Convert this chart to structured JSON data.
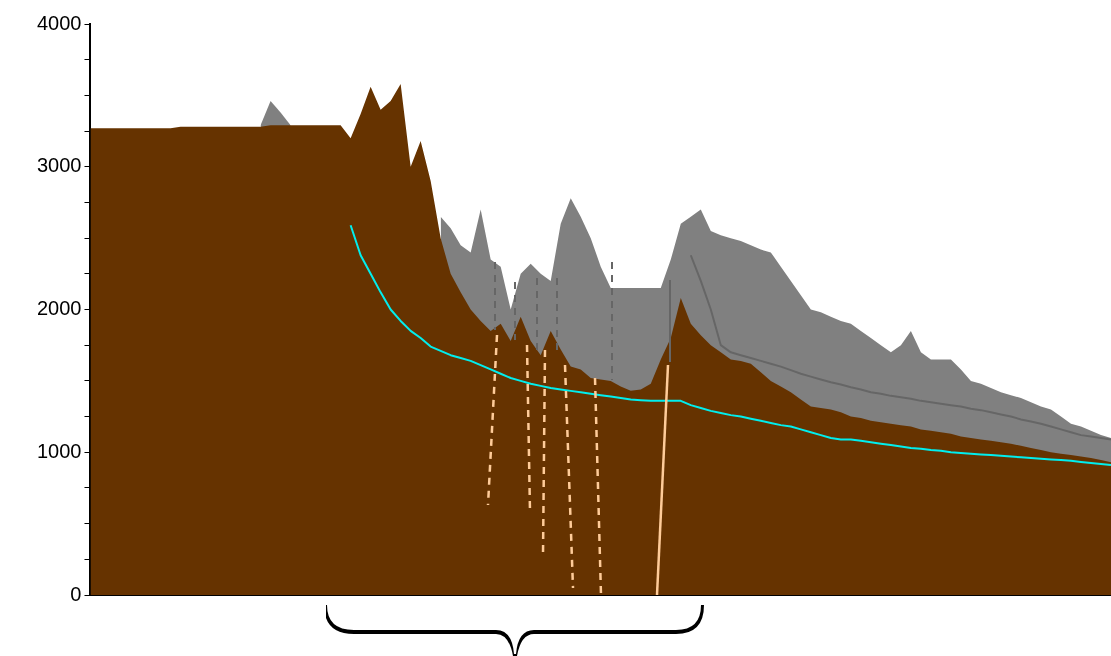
{
  "chart_data": {
    "type": "area",
    "ylim": [
      0,
      4000
    ],
    "categories": [
      null,
      null,
      null,
      null,
      null,
      null,
      null,
      null,
      null,
      null,
      null,
      null,
      null,
      null,
      null,
      null,
      null,
      null,
      null,
      null,
      null,
      null,
      null,
      null,
      null,
      null,
      null,
      null,
      null,
      null,
      null,
      null,
      null,
      null,
      null,
      null,
      null,
      null,
      null,
      null,
      null,
      null,
      null,
      null,
      null,
      null,
      null,
      null,
      null,
      null,
      null,
      null,
      null,
      null,
      null,
      null,
      null,
      null,
      null,
      null,
      null,
      null,
      null,
      null,
      null,
      null,
      null,
      null,
      null,
      null,
      null,
      null,
      null,
      null,
      null,
      null,
      null,
      null,
      null,
      null,
      null,
      null,
      null,
      null,
      null,
      null,
      null,
      null,
      null,
      null,
      null,
      null,
      null,
      null,
      null,
      null,
      null,
      null,
      null,
      null,
      null,
      null,
      null
    ],
    "yticks": [
      0,
      {
        "value": 250,
        "label": null
      },
      {
        "value": 500,
        "label": null
      },
      {
        "value": 750,
        "label": null
      },
      1000,
      {
        "value": 1250,
        "label": null
      },
      {
        "value": 1500,
        "label": null
      },
      {
        "value": 1750,
        "label": null
      },
      2000,
      {
        "value": 2250,
        "label": null
      },
      {
        "value": 2500,
        "label": null
      },
      {
        "value": 2750,
        "label": null
      },
      3000,
      {
        "value": 3250,
        "label": null
      },
      {
        "value": 3500,
        "label": null
      },
      {
        "value": 3750,
        "label": null
      },
      4000
    ],
    "tick_labels": "y",
    "grid": false,
    "legend": false,
    "marker": "none",
    "series": [
      {
        "color": "#808080",
        "values": [
          null,
          null,
          null,
          null,
          null,
          null,
          null,
          null,
          null,
          null,
          null,
          null,
          null,
          null,
          null,
          null,
          null,
          3290,
          3460,
          3380,
          3290,
          null,
          null,
          null,
          null,
          null,
          null,
          null,
          null,
          null,
          null,
          null,
          null,
          null,
          null,
          2650,
          2570,
          2450,
          2400,
          2700,
          2350,
          2300,
          2000,
          2250,
          2320,
          2250,
          2200,
          2600,
          2780,
          2650,
          2500,
          2300,
          2150,
          2150,
          2150,
          2150,
          2150,
          2150,
          2350,
          2600,
          2650,
          2700,
          2550,
          2520,
          2500,
          2480,
          2450,
          2420,
          2400,
          2300,
          2200,
          2100,
          2000,
          1980,
          1950,
          1920,
          1900,
          1850,
          1800,
          1750,
          1700,
          1750,
          1850,
          1700,
          1650,
          1650,
          1650,
          1580,
          1500,
          1480,
          1450,
          1420,
          1400,
          1380,
          1350,
          1320,
          1300,
          1250,
          1200,
          1180,
          1150,
          1120,
          1100
        ]
      },
      {
        "color": "#663300",
        "values": [
          3270,
          3270,
          3270,
          3270,
          3270,
          3270,
          3270,
          3270,
          3270,
          3280,
          3280,
          3280,
          3280,
          3280,
          3280,
          3280,
          3280,
          3280,
          3290,
          3290,
          3290,
          3290,
          3290,
          3290,
          3290,
          3290,
          3200,
          3370,
          3560,
          3400,
          3460,
          3580,
          3000,
          3180,
          2900,
          2500,
          2250,
          2120,
          2000,
          1920,
          1850,
          1900,
          1780,
          1950,
          1780,
          1680,
          1850,
          1720,
          1600,
          1580,
          1520,
          1510,
          1500,
          1460,
          1430,
          1440,
          1480,
          1650,
          1800,
          2080,
          1900,
          1820,
          1750,
          1700,
          1650,
          1640,
          1620,
          1560,
          1500,
          1460,
          1420,
          1370,
          1320,
          1310,
          1300,
          1280,
          1250,
          1240,
          1220,
          1210,
          1200,
          1190,
          1180,
          1160,
          1150,
          1140,
          1130,
          1110,
          1100,
          1090,
          1080,
          1070,
          1060,
          1045,
          1030,
          1015,
          1000,
          990,
          980,
          970,
          960,
          945,
          930
        ]
      },
      {
        "type": "line",
        "color": "#00eeee",
        "line_style": "solid",
        "values": [
          null,
          null,
          null,
          null,
          null,
          null,
          null,
          null,
          null,
          null,
          null,
          null,
          null,
          null,
          null,
          null,
          null,
          null,
          null,
          null,
          null,
          null,
          null,
          null,
          null,
          null,
          2590,
          2380,
          2250,
          2120,
          2000,
          1920,
          1850,
          1800,
          1740,
          1710,
          1680,
          1660,
          1640,
          1610,
          1580,
          1550,
          1520,
          1500,
          1480,
          1465,
          1450,
          1440,
          1430,
          1420,
          1410,
          1400,
          1390,
          1380,
          1370,
          1365,
          1360,
          1360,
          1360,
          1360,
          1330,
          1310,
          1290,
          1275,
          1260,
          1250,
          1235,
          1220,
          1205,
          1190,
          1180,
          1160,
          1140,
          1120,
          1100,
          1090,
          1090,
          1080,
          1070,
          1060,
          1050,
          1040,
          1030,
          1025,
          1015,
          1010,
          1000,
          995,
          990,
          985,
          980,
          975,
          970,
          965,
          960,
          955,
          950,
          945,
          940,
          932,
          925,
          918,
          910
        ]
      },
      {
        "type": "line",
        "color": "#666666",
        "line_style": "solid",
        "values": [
          null,
          null,
          null,
          null,
          null,
          null,
          null,
          null,
          null,
          null,
          null,
          null,
          null,
          null,
          null,
          null,
          null,
          null,
          null,
          null,
          null,
          null,
          null,
          null,
          null,
          null,
          null,
          null,
          null,
          null,
          null,
          null,
          null,
          null,
          null,
          null,
          null,
          null,
          null,
          null,
          null,
          null,
          null,
          null,
          null,
          null,
          null,
          null,
          null,
          null,
          null,
          null,
          null,
          null,
          null,
          null,
          null,
          null,
          null,
          null,
          2380,
          2200,
          2000,
          1750,
          1700,
          1680,
          1660,
          1640,
          1620,
          1600,
          1575,
          1550,
          1530,
          1510,
          1490,
          1475,
          1455,
          1440,
          1420,
          1410,
          1395,
          1385,
          1375,
          1360,
          1350,
          1340,
          1330,
          1320,
          1305,
          1295,
          1280,
          1265,
          1250,
          1230,
          1215,
          1200,
          1180,
          1160,
          1140,
          1120,
          1110,
          1100,
          1090
        ]
      }
    ]
  }
}
